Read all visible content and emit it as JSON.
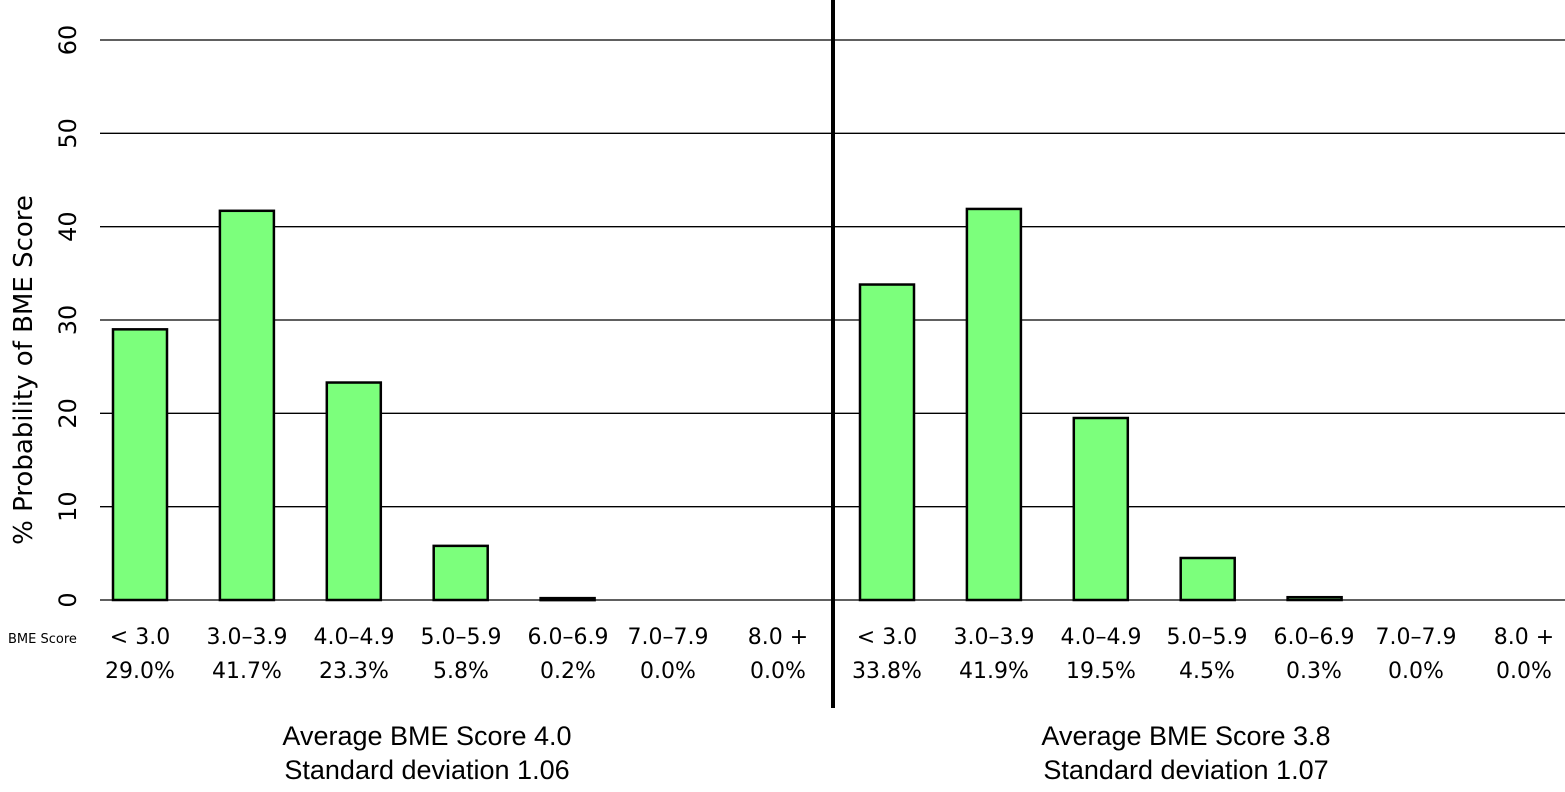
{
  "chart_data": {
    "type": "bar",
    "ylabel": "% Probability of BME Score",
    "xlabel": "BME Score",
    "ylim": [
      0,
      60
    ],
    "yticks": [
      0,
      10,
      20,
      30,
      40,
      50,
      60
    ],
    "grid": true,
    "panels": [
      {
        "categories": [
          "< 3.0",
          "3.0–3.9",
          "4.0–4.9",
          "5.0–5.9",
          "6.0–6.9",
          "7.0–7.9",
          "8.0 +"
        ],
        "percent_labels": [
          "29.0%",
          "41.7%",
          "23.3%",
          "5.8%",
          "0.2%",
          "0.0%",
          "0.0%"
        ],
        "values": [
          29.0,
          41.7,
          23.3,
          5.8,
          0.2,
          0.0,
          0.0
        ],
        "summary": [
          "Average BME Score 4.0",
          "Standard deviation 1.06"
        ]
      },
      {
        "categories": [
          "< 3.0",
          "3.0–3.9",
          "4.0–4.9",
          "5.0–5.9",
          "6.0–6.9",
          "7.0–7.9",
          "8.0 +"
        ],
        "percent_labels": [
          "33.8%",
          "41.9%",
          "19.5%",
          "4.5%",
          "0.3%",
          "0.0%",
          "0.0%"
        ],
        "values": [
          33.8,
          41.9,
          19.5,
          4.5,
          0.3,
          0.0,
          0.0
        ],
        "summary": [
          "Average BME Score 3.8",
          "Standard deviation 1.07"
        ]
      }
    ],
    "colors": {
      "bar_fill": "#7cff7c",
      "bar_stroke": "#000000",
      "grid": "#000000",
      "divider": "#000000"
    }
  }
}
